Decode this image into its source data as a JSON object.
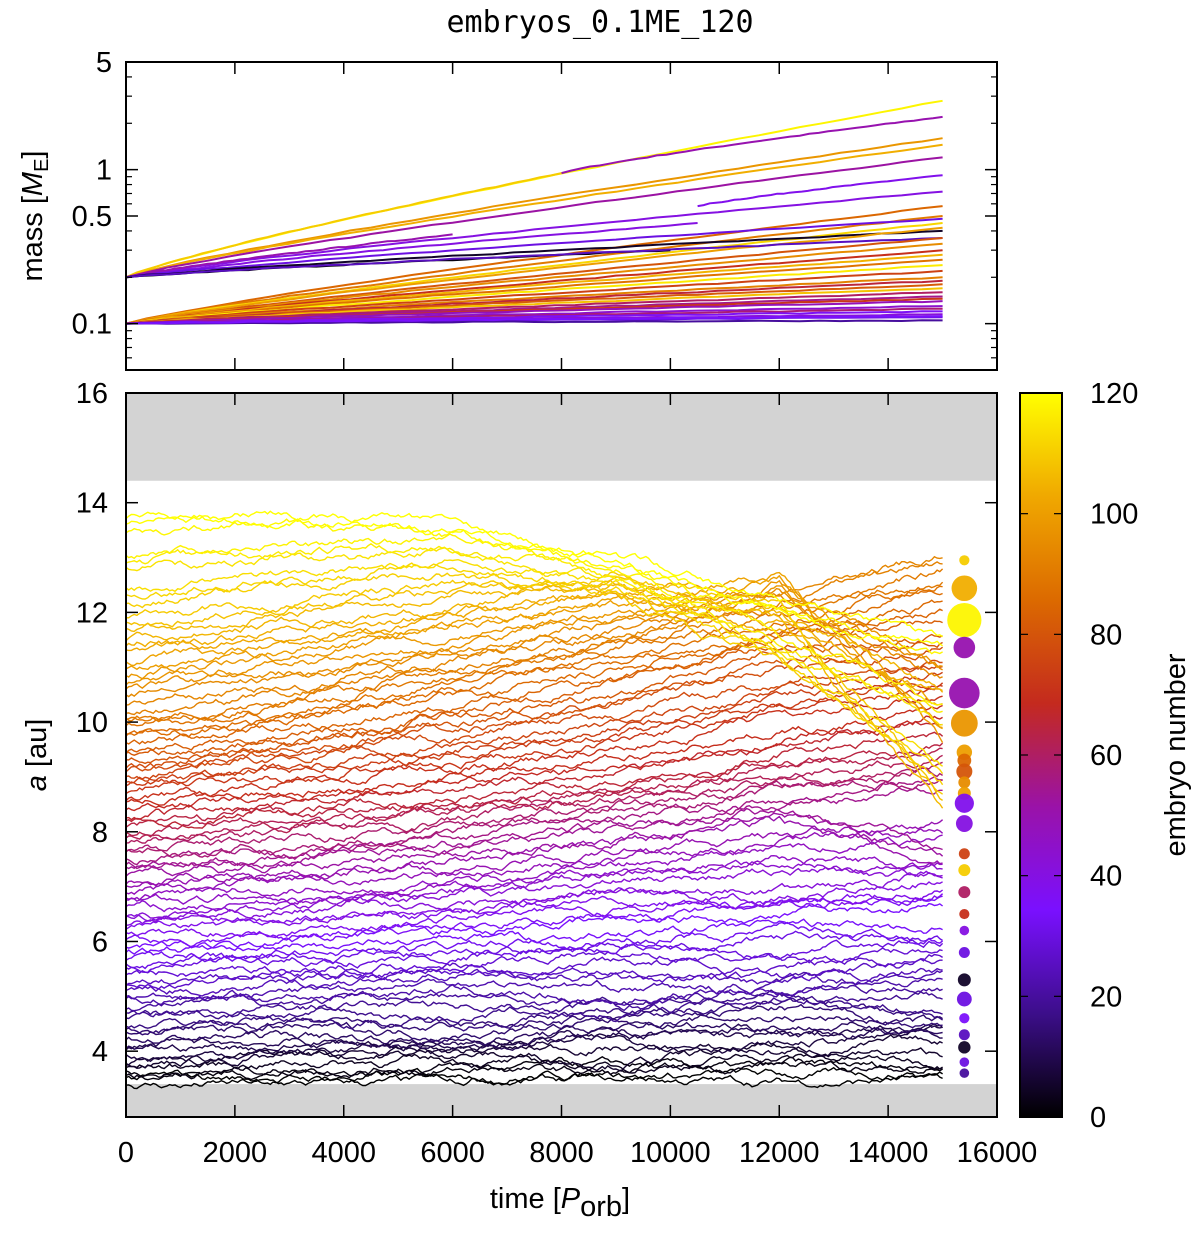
{
  "chart_data": [
    {
      "type": "line",
      "title": "embryos_0.1ME_120",
      "panel": "top",
      "ylabel": {
        "text": "mass [",
        "var": "M",
        "sub": "E",
        "close": "]"
      },
      "yscale": "log",
      "ylim": [
        0.05,
        5
      ],
      "xlim": [
        0,
        16000
      ],
      "yticks": [
        0.1,
        0.5,
        1,
        5
      ],
      "ytick_labels": [
        "0.1",
        "0.5",
        "1",
        "5"
      ],
      "xticks": [
        0,
        2000,
        4000,
        6000,
        8000,
        10000,
        12000,
        14000,
        16000
      ],
      "grid": false,
      "series_format": "[embryo, t_start, t_end, mass_start, mass_end]",
      "series": [
        [
          118,
          0,
          15000,
          0.2,
          2.8
        ],
        [
          50,
          8000,
          15000,
          0.95,
          2.2
        ],
        [
          98,
          0,
          15000,
          0.2,
          1.6
        ],
        [
          104,
          0,
          15000,
          0.2,
          1.45
        ],
        [
          110,
          0,
          8000,
          0.2,
          0.95
        ],
        [
          52,
          0,
          15000,
          0.2,
          1.2
        ],
        [
          38,
          10500,
          15000,
          0.58,
          0.92
        ],
        [
          40,
          0,
          15000,
          0.2,
          0.72
        ],
        [
          40,
          0,
          10500,
          0.2,
          0.45
        ],
        [
          50,
          0,
          6000,
          0.2,
          0.38
        ],
        [
          85,
          0,
          15000,
          0.1,
          0.58
        ],
        [
          90,
          0,
          15000,
          0.1,
          0.5
        ],
        [
          30,
          0,
          15000,
          0.2,
          0.48
        ],
        [
          112,
          0,
          15000,
          0.1,
          0.45
        ],
        [
          5,
          0,
          15000,
          0.2,
          0.4
        ],
        [
          100,
          0,
          15000,
          0.1,
          0.42
        ],
        [
          2,
          0,
          10000,
          0.2,
          0.3
        ],
        [
          25,
          0,
          15000,
          0.2,
          0.36
        ],
        [
          80,
          0,
          15000,
          0.1,
          0.36
        ],
        [
          95,
          0,
          15000,
          0.1,
          0.33
        ],
        [
          70,
          0,
          15000,
          0.1,
          0.3
        ],
        [
          105,
          0,
          15000,
          0.1,
          0.28
        ],
        [
          88,
          0,
          15000,
          0.1,
          0.26
        ],
        [
          116,
          0,
          15000,
          0.1,
          0.24
        ],
        [
          75,
          0,
          15000,
          0.1,
          0.22
        ],
        [
          92,
          0,
          15000,
          0.1,
          0.2
        ],
        [
          65,
          0,
          15000,
          0.1,
          0.19
        ],
        [
          82,
          0,
          15000,
          0.1,
          0.18
        ],
        [
          108,
          0,
          15000,
          0.1,
          0.17
        ],
        [
          60,
          0,
          15000,
          0.1,
          0.16
        ],
        [
          55,
          0,
          15000,
          0.1,
          0.15
        ],
        [
          72,
          0,
          15000,
          0.1,
          0.145
        ],
        [
          48,
          0,
          15000,
          0.1,
          0.14
        ],
        [
          44,
          0,
          15000,
          0.1,
          0.13
        ],
        [
          58,
          0,
          15000,
          0.1,
          0.125
        ],
        [
          36,
          0,
          15000,
          0.1,
          0.12
        ],
        [
          42,
          0,
          15000,
          0.1,
          0.115
        ],
        [
          30,
          0,
          15000,
          0.1,
          0.11
        ],
        [
          20,
          0,
          15000,
          0.1,
          0.105
        ],
        [
          34,
          0,
          15000,
          0.1,
          0.112
        ]
      ]
    },
    {
      "type": "line",
      "panel": "bottom",
      "xlabel": {
        "text": "time [",
        "var": "P",
        "sub": "orb",
        "close": "]"
      },
      "ylabel": {
        "var": "a",
        "text": " [au]"
      },
      "xlim": [
        0,
        16000
      ],
      "ylim": [
        2.8,
        16
      ],
      "xticks": [
        0,
        2000,
        4000,
        6000,
        8000,
        10000,
        12000,
        14000,
        16000
      ],
      "xtick_labels": [
        "0",
        "2000",
        "4000",
        "6000",
        "8000",
        "10000",
        "12000",
        "14000",
        "16000"
      ],
      "yticks": [
        4,
        6,
        8,
        10,
        12,
        14,
        16
      ],
      "ytick_labels": [
        "4",
        "6",
        "8",
        "10",
        "12",
        "14",
        "16"
      ],
      "grid": false,
      "shaded_regions": [
        [
          14.4,
          16
        ],
        [
          2.8,
          3.4
        ]
      ],
      "shade_color": "#d3d3d3",
      "track_times": [
        0,
        3000,
        6000,
        9000,
        12000,
        15000
      ],
      "tracks": [
        {
          "embryo": 0,
          "a": [
            3.5,
            3.5,
            3.55,
            3.6,
            3.55,
            3.6
          ]
        },
        {
          "embryo": 4,
          "a": [
            3.7,
            3.8,
            3.85,
            3.7,
            3.9,
            3.8
          ]
        },
        {
          "embryo": 8,
          "a": [
            3.9,
            4.0,
            4.1,
            4.2,
            4.1,
            4.3
          ]
        },
        {
          "embryo": 12,
          "a": [
            4.2,
            4.3,
            4.2,
            4.4,
            4.5,
            4.4
          ]
        },
        {
          "embryo": 16,
          "a": [
            4.5,
            4.6,
            4.5,
            4.7,
            4.9,
            4.6
          ]
        },
        {
          "embryo": 20,
          "a": [
            4.8,
            4.9,
            5.0,
            4.8,
            5.1,
            5.2
          ]
        },
        {
          "embryo": 24,
          "a": [
            5.1,
            5.2,
            5.4,
            5.3,
            5.2,
            5.5
          ]
        },
        {
          "embryo": 28,
          "a": [
            5.4,
            5.5,
            5.6,
            5.8,
            5.6,
            5.9
          ]
        },
        {
          "embryo": 32,
          "a": [
            5.7,
            5.8,
            5.9,
            6.0,
            6.2,
            6.1
          ]
        },
        {
          "embryo": 36,
          "a": [
            6.0,
            6.1,
            6.3,
            6.5,
            6.6,
            6.8
          ]
        },
        {
          "embryo": 40,
          "a": [
            6.3,
            6.5,
            6.6,
            6.9,
            6.8,
            7.1
          ]
        },
        {
          "embryo": 44,
          "a": [
            6.6,
            6.7,
            6.9,
            7.2,
            7.4,
            7.3
          ]
        },
        {
          "embryo": 48,
          "a": [
            6.9,
            7.1,
            7.2,
            7.5,
            7.8,
            8.0
          ]
        },
        {
          "embryo": 52,
          "a": [
            7.2,
            7.4,
            7.6,
            7.9,
            8.3,
            7.6
          ]
        },
        {
          "embryo": 56,
          "a": [
            7.5,
            7.6,
            7.9,
            8.2,
            8.6,
            8.9
          ]
        },
        {
          "embryo": 60,
          "a": [
            7.8,
            8.0,
            8.2,
            8.6,
            8.9,
            9.2
          ]
        },
        {
          "embryo": 64,
          "a": [
            8.1,
            8.3,
            8.5,
            8.8,
            9.3,
            9.6
          ]
        },
        {
          "embryo": 68,
          "a": [
            8.4,
            8.6,
            8.9,
            9.2,
            9.7,
            10.1
          ]
        },
        {
          "embryo": 72,
          "a": [
            8.7,
            9.0,
            9.3,
            9.6,
            10.2,
            10.6
          ]
        },
        {
          "embryo": 76,
          "a": [
            9.0,
            9.3,
            9.6,
            10.0,
            10.6,
            11.0
          ]
        },
        {
          "embryo": 80,
          "a": [
            9.3,
            9.6,
            10.0,
            10.4,
            11.1,
            11.5
          ]
        },
        {
          "embryo": 84,
          "a": [
            9.6,
            9.9,
            10.3,
            10.8,
            11.5,
            12.0
          ]
        },
        {
          "embryo": 88,
          "a": [
            9.9,
            10.2,
            10.7,
            11.2,
            11.8,
            12.5
          ]
        },
        {
          "embryo": 92,
          "a": [
            10.2,
            10.5,
            11.0,
            11.5,
            12.2,
            12.9
          ]
        },
        {
          "embryo": 96,
          "a": [
            10.6,
            10.9,
            11.3,
            11.8,
            12.4,
            11.0
          ]
        },
        {
          "embryo": 100,
          "a": [
            11.0,
            11.3,
            11.7,
            12.1,
            12.6,
            9.8
          ]
        },
        {
          "embryo": 104,
          "a": [
            11.4,
            11.7,
            12.0,
            12.4,
            11.8,
            10.5
          ]
        },
        {
          "embryo": 108,
          "a": [
            11.8,
            12.1,
            12.4,
            12.6,
            12.0,
            8.6
          ]
        },
        {
          "embryo": 112,
          "a": [
            12.3,
            12.6,
            12.8,
            12.4,
            11.2,
            9.0
          ]
        },
        {
          "embryo": 116,
          "a": [
            12.9,
            13.1,
            13.2,
            12.7,
            11.5,
            10.2
          ]
        },
        {
          "embryo": 120,
          "a": [
            13.6,
            13.7,
            13.5,
            12.9,
            12.1,
            11.4
          ]
        }
      ],
      "final_bodies_time": 15400,
      "final_bodies_format": "[a, mass, embryo]",
      "final_bodies": [
        [
          12.95,
          0.12,
          110
        ],
        [
          12.44,
          1.45,
          104
        ],
        [
          11.86,
          2.8,
          118
        ],
        [
          11.36,
          0.95,
          50
        ],
        [
          10.53,
          2.2,
          50
        ],
        [
          9.98,
          1.6,
          98
        ],
        [
          9.45,
          0.4,
          100
        ],
        [
          9.3,
          0.3,
          85
        ],
        [
          9.1,
          0.45,
          80
        ],
        [
          8.9,
          0.2,
          95
        ],
        [
          8.7,
          0.25,
          100
        ],
        [
          8.52,
          0.72,
          38
        ],
        [
          8.15,
          0.5,
          40
        ],
        [
          7.6,
          0.15,
          75
        ],
        [
          7.3,
          0.2,
          110
        ],
        [
          6.9,
          0.2,
          60
        ],
        [
          6.5,
          0.12,
          70
        ],
        [
          6.2,
          0.1,
          40
        ],
        [
          5.8,
          0.15,
          30
        ],
        [
          5.3,
          0.25,
          5
        ],
        [
          4.95,
          0.36,
          30
        ],
        [
          4.6,
          0.12,
          35
        ],
        [
          4.3,
          0.15,
          25
        ],
        [
          4.07,
          0.22,
          5
        ],
        [
          3.8,
          0.1,
          30
        ],
        [
          3.6,
          0.1,
          20
        ]
      ]
    }
  ],
  "colorbar": {
    "label": "embryo number",
    "range": [
      0,
      120
    ],
    "ticks": [
      "0",
      "20",
      "40",
      "60",
      "80",
      "100",
      "120"
    ],
    "palette": [
      "#000000",
      "#3c0e8a",
      "#7a10ff",
      "#9a12a8",
      "#c42a1e",
      "#dc6a00",
      "#f0a800",
      "#ffff00"
    ]
  }
}
